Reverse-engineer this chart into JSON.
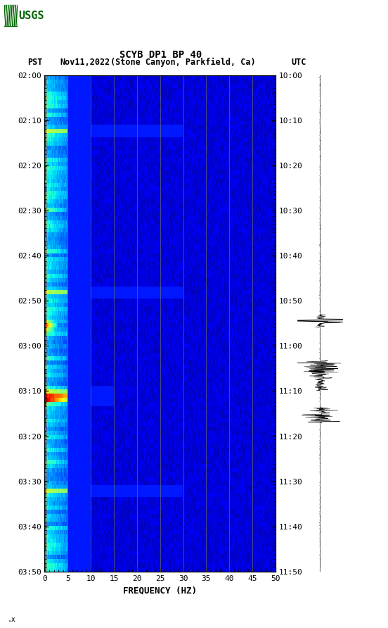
{
  "title_line1": "SCYB DP1 BP 40",
  "title_line2_pst": "PST  Nov11,2022  (Stone Canyon, Parkfield, Ca)        UTC",
  "xlabel": "FREQUENCY (HZ)",
  "freq_min": 0,
  "freq_max": 50,
  "freq_ticks": [
    0,
    5,
    10,
    15,
    20,
    25,
    30,
    35,
    40,
    45,
    50
  ],
  "time_labels_left": [
    "02:00",
    "02:10",
    "02:20",
    "02:30",
    "02:40",
    "02:50",
    "03:00",
    "03:10",
    "03:20",
    "03:30",
    "03:40",
    "03:50"
  ],
  "time_labels_right": [
    "10:00",
    "10:10",
    "10:20",
    "10:30",
    "10:40",
    "10:50",
    "11:00",
    "11:10",
    "11:20",
    "11:30",
    "11:40",
    "11:50"
  ],
  "n_time": 120,
  "n_freq": 500,
  "background_color": "#ffffff",
  "vlines_freq": [
    5,
    10,
    15,
    20,
    25,
    30,
    35,
    40,
    45
  ],
  "vline_color": "#888840",
  "logo_color": "#006600"
}
